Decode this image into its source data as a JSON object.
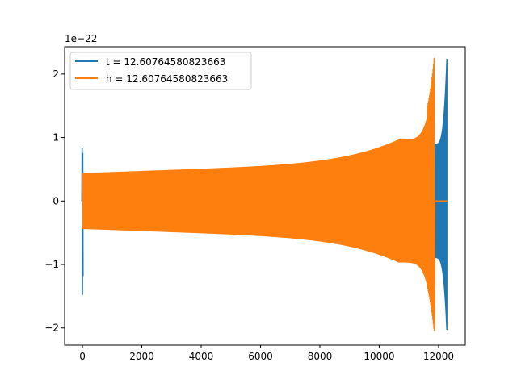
{
  "chart_data": {
    "type": "line",
    "title": "",
    "xlabel": "",
    "ylabel": "",
    "y_offset_text": "1e−22",
    "xlim": [
      -600,
      12900
    ],
    "ylim": [
      -2.27,
      2.43
    ],
    "xticks": [
      0,
      2000,
      4000,
      6000,
      8000,
      10000,
      12000
    ],
    "xtick_labels": [
      "0",
      "2000",
      "4000",
      "6000",
      "8000",
      "10000",
      "12000"
    ],
    "yticks": [
      -2,
      -1,
      0,
      1,
      2
    ],
    "ytick_labels": [
      "−2",
      "−1",
      "0",
      "1",
      "2"
    ],
    "grid": false,
    "legend_position": "upper left",
    "series": [
      {
        "name": "t = 12.60764580823663",
        "color": "#1f77b4",
        "start_spike": {
          "x": 0,
          "y_max": 0.84,
          "y_min": -1.48
        },
        "x_start": 0,
        "x_end": 11870,
        "envelope_start": 0.44,
        "envelope_end": 0.9,
        "burst": {
          "x_start": 11870,
          "x_end": 12280,
          "peak_x": 12280,
          "y_max": 2.24,
          "y_min": -2.05
        },
        "tail_flat": {
          "x_start": 12280,
          "x_end": 12300,
          "y": 0
        }
      },
      {
        "name": "h = 12.60764580823663",
        "color": "#ff7f0e",
        "x_start": 0,
        "x_end": 11870,
        "envelope_start": 0.44,
        "envelope_mid": 0.62,
        "peak_x": 11850,
        "y_max": 2.24,
        "y_min": -2.05,
        "tail_flat": {
          "x_start": 11870,
          "x_end": 12300,
          "y": 0
        }
      }
    ]
  }
}
